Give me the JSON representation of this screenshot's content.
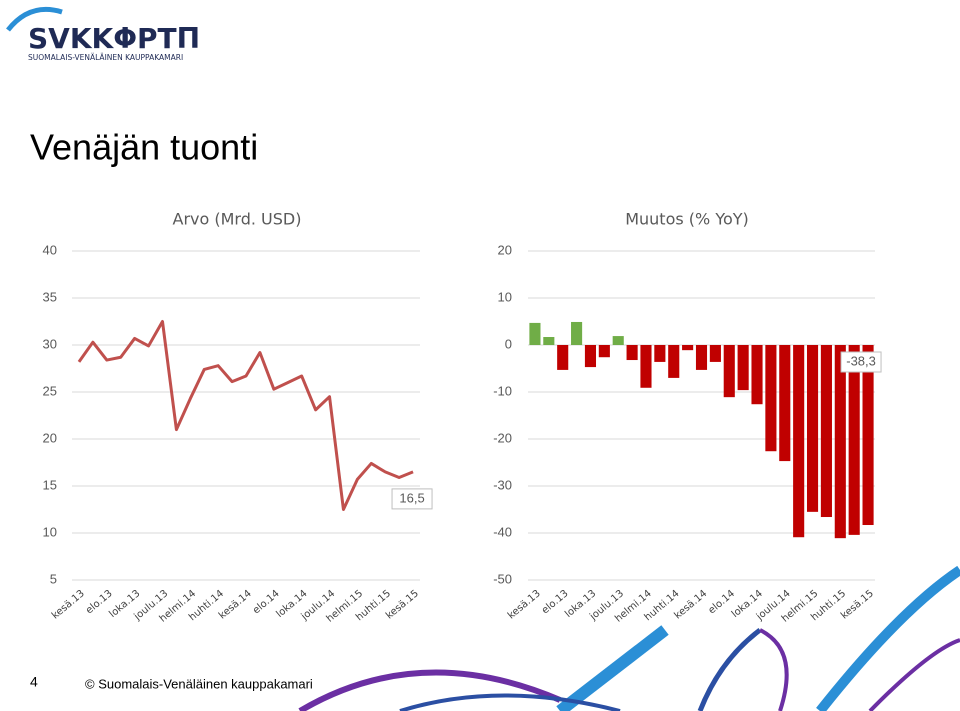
{
  "logo": {
    "name": "SVKKΦPTΠ",
    "subtitle": "SUOMALAIS-VENÄLÄINEN KAUPPAKAMARI"
  },
  "title": "Venäjän tuonti",
  "footer": {
    "page": "4",
    "copyright": "© Suomalais-Venäläinen kauppakamari"
  },
  "chart_data": [
    {
      "type": "line",
      "title": "Arvo (Mrd. USD)",
      "color": "#c0504d",
      "categories": [
        "kesä.13",
        null,
        "elo.13",
        null,
        "loka.13",
        null,
        "joulu.13",
        null,
        "helmi.14",
        null,
        "huhti.14",
        null,
        "kesä.14",
        null,
        "elo.14",
        null,
        "loka.14",
        null,
        "joulu.14",
        null,
        "helmi.15",
        null,
        "huhti.15",
        null,
        "kesä.15"
      ],
      "values": [
        28.2,
        30.3,
        28.4,
        28.7,
        30.7,
        29.9,
        32.5,
        21.0,
        24.3,
        27.4,
        27.8,
        26.1,
        26.7,
        29.2,
        25.3,
        26.0,
        26.7,
        23.1,
        24.5,
        12.5,
        15.7,
        17.4,
        16.5,
        15.9,
        16.5
      ],
      "value_labels": [
        null,
        null,
        null,
        null,
        null,
        null,
        null,
        null,
        null,
        null,
        null,
        null,
        null,
        null,
        null,
        null,
        null,
        null,
        null,
        null,
        null,
        null,
        null,
        null,
        "16,5"
      ],
      "ylim": [
        5,
        40
      ],
      "yticks": [
        5,
        10,
        15,
        20,
        25,
        30,
        35,
        40
      ],
      "grid": true
    },
    {
      "type": "bar",
      "title": "Muutos (% YoY)",
      "positive_color": "#70ad47",
      "negative_color": "#c00000",
      "categories": [
        "kesä.13",
        null,
        "elo.13",
        null,
        "loka.13",
        null,
        "joulu.13",
        null,
        "helmi.14",
        null,
        "huhti.14",
        null,
        "kesä.14",
        null,
        "elo.14",
        null,
        "loka.14",
        null,
        "joulu.14",
        null,
        "helmi.15",
        null,
        "huhti.15",
        null,
        "kesä.15"
      ],
      "values": [
        4.7,
        1.7,
        -5.3,
        4.9,
        -4.7,
        -2.6,
        1.9,
        -3.2,
        -9.1,
        -3.6,
        -7.0,
        -1.1,
        -5.3,
        -3.6,
        -11.1,
        -9.6,
        -12.6,
        -22.6,
        -24.7,
        -40.9,
        -35.5,
        -36.6,
        -41.1,
        -40.4,
        -38.3
      ],
      "value_labels": [
        null,
        null,
        null,
        null,
        null,
        null,
        null,
        null,
        null,
        null,
        null,
        null,
        null,
        null,
        null,
        null,
        null,
        null,
        null,
        null,
        null,
        null,
        null,
        null,
        "-38,3"
      ],
      "ylim": [
        -50,
        20
      ],
      "yticks": [
        -50,
        -40,
        -30,
        -20,
        -10,
        0,
        10,
        20
      ],
      "grid": true
    }
  ]
}
